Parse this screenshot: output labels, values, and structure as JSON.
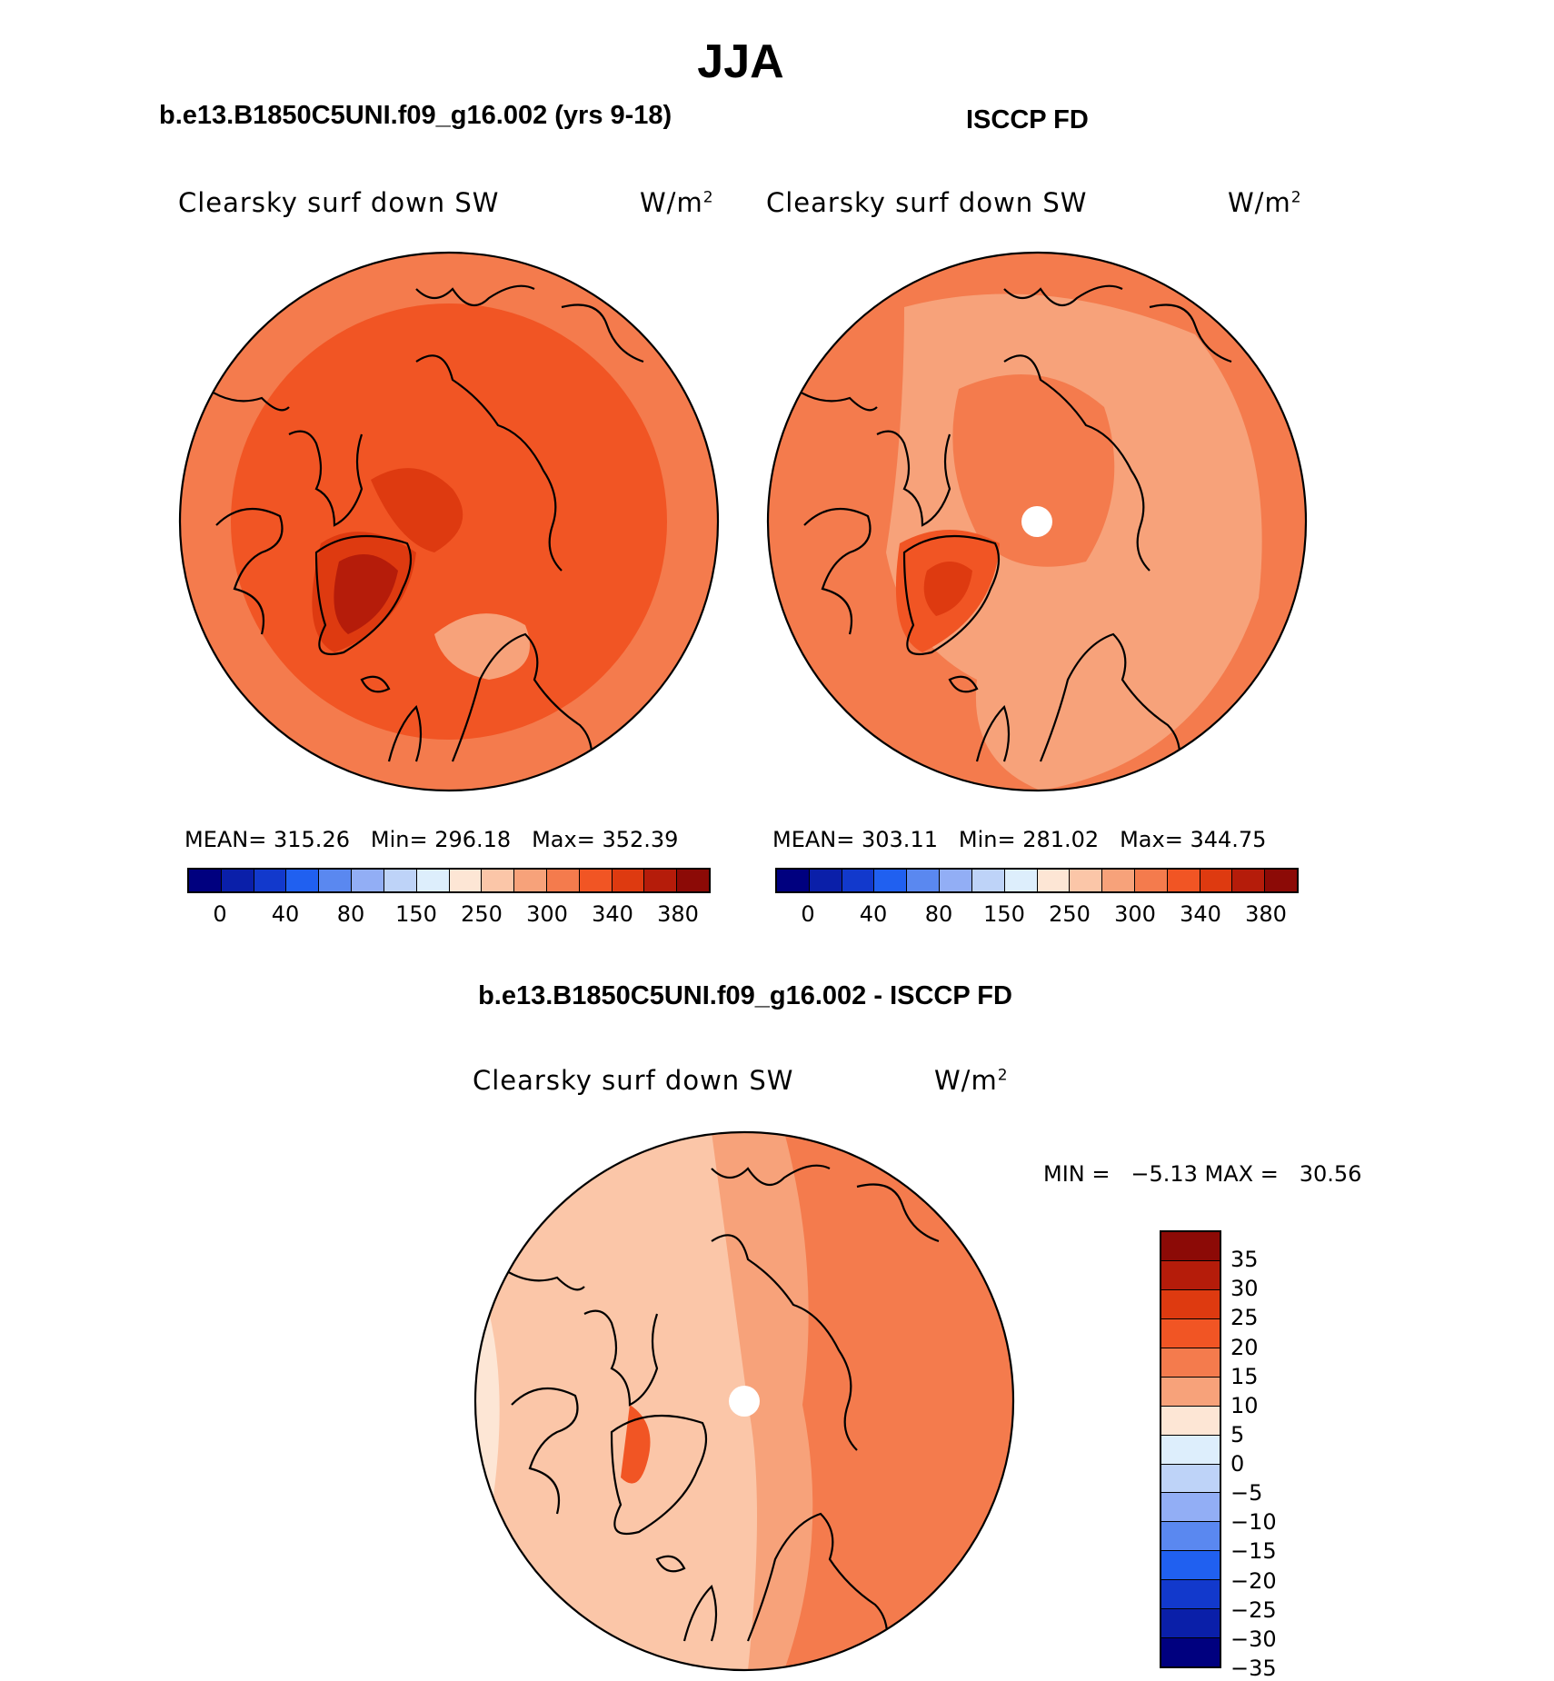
{
  "title": "JJA",
  "panels": {
    "model": {
      "case": "b.e13.B1850C5UNI.f09_g16.002 (yrs 9-18)",
      "variable": "Clearsky surf down SW",
      "units": "W/m",
      "units_sup": "2",
      "mean_label": "MEAN=",
      "mean_value": "315.26",
      "min_label": "Min=",
      "min_value": "296.18",
      "max_label": "Max=",
      "max_value": "352.39"
    },
    "obs": {
      "case": "ISCCP FD",
      "variable": "Clearsky surf down SW",
      "units": "W/m",
      "units_sup": "2",
      "mean_label": "MEAN=",
      "mean_value": "303.11",
      "min_label": "Min=",
      "min_value": "281.02",
      "max_label": "Max=",
      "max_value": "344.75"
    },
    "diff": {
      "case": "b.e13.B1850C5UNI.f09_g16.002 - ISCCP FD",
      "variable": "Clearsky surf down SW",
      "units": "W/m",
      "units_sup": "2",
      "minmax_text": "MIN =   −5.13 MAX =   30.56"
    }
  },
  "abs_colorbar": {
    "colors": [
      "#00007f",
      "#0a1fa9",
      "#1239cc",
      "#2060f0",
      "#5a88f0",
      "#92aef5",
      "#bed3f8",
      "#ddeefc",
      "#fde6d5",
      "#fbc6a8",
      "#f7a27a",
      "#f47b4d",
      "#f15524",
      "#de3a10",
      "#b51c0a",
      "#8c0a06"
    ],
    "ticks": [
      "0",
      "40",
      "80",
      "150",
      "250",
      "300",
      "340",
      "380"
    ]
  },
  "diff_colorbar": {
    "colors": [
      "#8c0a06",
      "#b51c0a",
      "#de3a10",
      "#f15524",
      "#f47b4d",
      "#f7a27a",
      "#fde6d5",
      "#ddeefc",
      "#bed3f8",
      "#92aef5",
      "#5a88f0",
      "#2060f0",
      "#1239cc",
      "#0a1fa9",
      "#00007f"
    ],
    "ticks": [
      "35",
      "30",
      "25",
      "20",
      "15",
      "10",
      "5",
      "0",
      "−5",
      "−10",
      "−15",
      "−20",
      "−25",
      "−30",
      "−35"
    ]
  },
  "map_fill": {
    "model": {
      "base": "#f15524",
      "outer": "#f47b4d",
      "greenland_core": "#b51c0a",
      "greenland_edge": "#de3a10",
      "low_area": "#f7a27a",
      "high_area": "#de3a10"
    },
    "obs": {
      "base": "#f7a27a",
      "outer": "#f47b4d",
      "greenland_core": "#de3a10",
      "greenland_edge": "#f15524",
      "pole_area": "#f47b4d",
      "pole_hole": "#ffffff"
    },
    "diff": {
      "base": "#fbc6a8",
      "east": "#f47b4d",
      "mid": "#f7a27a",
      "west": "#fde6d5",
      "pole_hole": "#ffffff",
      "greenland": "#f15524"
    }
  }
}
